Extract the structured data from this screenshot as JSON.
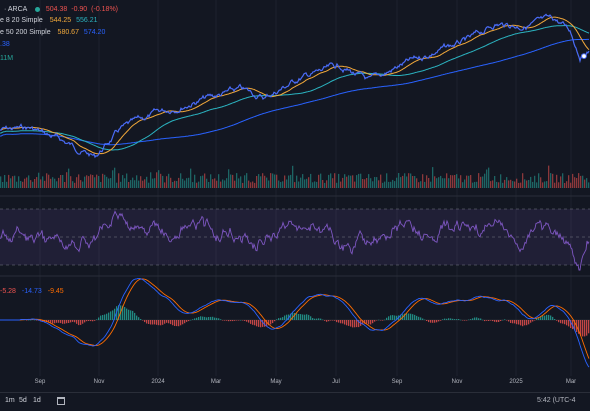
{
  "symbol_bar": {
    "exchange_label": "· ARCA",
    "price": "504.38",
    "change": "-0.90",
    "change_pct": "(-0.18%)"
  },
  "indicators": {
    "ma1_label": "e 8 20 Simple",
    "ma1_val1": "544.25",
    "ma1_val2": "556.21",
    "ma2_label": "e 50 200 Simple",
    "ma2_val1": "580.67",
    "ma2_val2": "574.20",
    "vol_label": ".38",
    "vol2_label": "11M",
    "macd_val1": "-5.28",
    "macd_val2": "-14.73",
    "macd_val3": "-9.45"
  },
  "colors": {
    "price_line": "#4a6cf7",
    "ma_fast": "#f2a93b",
    "ma_slow": "#2bb3c0",
    "ma_long": "#2962ff",
    "rsi": "#7e57c2",
    "macd_line": "#2962ff",
    "signal_line": "#ff6d00",
    "up": "#26a69a",
    "down": "#ef5350"
  },
  "x_axis": [
    "Sep",
    "Nov",
    "2024",
    "Mar",
    "May",
    "Jul",
    "Sep",
    "Nov",
    "2025",
    "Mar"
  ],
  "timeframes": [
    "1m",
    "5d",
    "1d"
  ],
  "calendar_icon": "calendar-icon",
  "clock_text": "5:42 (UTC-4"
}
